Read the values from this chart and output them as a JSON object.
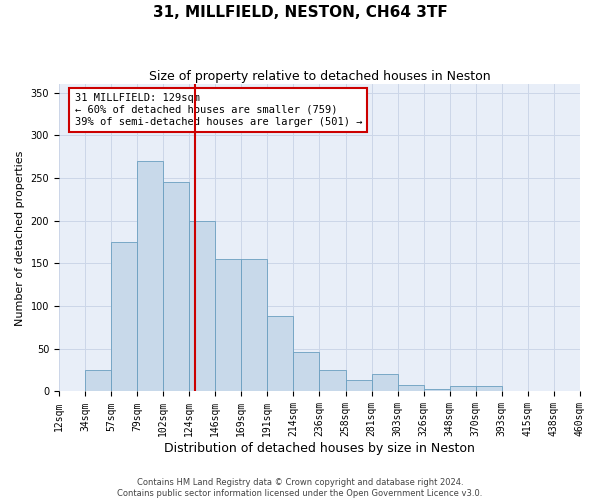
{
  "title": "31, MILLFIELD, NESTON, CH64 3TF",
  "subtitle": "Size of property relative to detached houses in Neston",
  "xlabel": "Distribution of detached houses by size in Neston",
  "ylabel": "Number of detached properties",
  "bar_color": "#c8d9ea",
  "bar_edge_color": "#6a9ec0",
  "grid_color": "#ccd6e8",
  "background_color": "#e8eef8",
  "annotation_box_color": "#cc0000",
  "vline_color": "#cc0000",
  "annotation_text": "31 MILLFIELD: 129sqm\n← 60% of detached houses are smaller (759)\n39% of semi-detached houses are larger (501) →",
  "categories": [
    "12sqm",
    "34sqm",
    "57sqm",
    "79sqm",
    "102sqm",
    "124sqm",
    "146sqm",
    "169sqm",
    "191sqm",
    "214sqm",
    "236sqm",
    "258sqm",
    "281sqm",
    "303sqm",
    "326sqm",
    "348sqm",
    "370sqm",
    "393sqm",
    "415sqm",
    "438sqm",
    "460sqm"
  ],
  "bar_heights": [
    0,
    25,
    175,
    270,
    245,
    200,
    155,
    155,
    88,
    46,
    25,
    13,
    20,
    7,
    3,
    6,
    6,
    0,
    0,
    0
  ],
  "ylim": [
    0,
    360
  ],
  "yticks": [
    0,
    50,
    100,
    150,
    200,
    250,
    300,
    350
  ],
  "footer": "Contains HM Land Registry data © Crown copyright and database right 2024.\nContains public sector information licensed under the Open Government Licence v3.0.",
  "title_fontsize": 11,
  "subtitle_fontsize": 9,
  "xlabel_fontsize": 9,
  "ylabel_fontsize": 8,
  "tick_fontsize": 7,
  "footer_fontsize": 6,
  "annotation_fontsize": 7.5
}
